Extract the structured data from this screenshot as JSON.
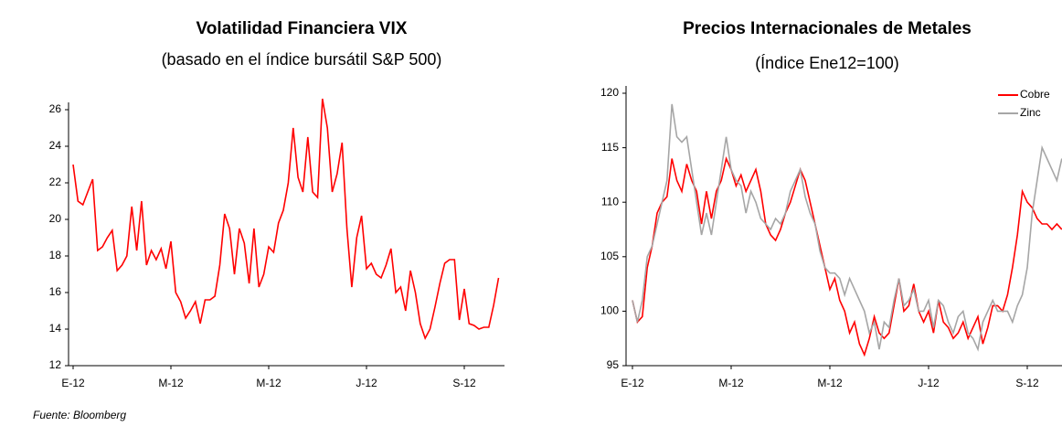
{
  "chart_data": [
    {
      "type": "line",
      "title": "Volatilidad Financiera VIX",
      "subtitle": "(basado en el índice bursátil S&P 500)",
      "source": "Fuente: Bloomberg",
      "categories": [
        "E-12",
        null,
        null,
        null,
        null,
        null,
        null,
        null,
        null,
        null,
        null,
        null,
        null,
        null,
        null,
        null,
        null,
        null,
        null,
        null,
        "M-12",
        null,
        null,
        null,
        null,
        null,
        null,
        null,
        null,
        null,
        null,
        null,
        null,
        null,
        null,
        null,
        null,
        null,
        null,
        null,
        "M-12",
        null,
        null,
        null,
        null,
        null,
        null,
        null,
        null,
        null,
        null,
        null,
        null,
        null,
        null,
        null,
        null,
        null,
        null,
        null,
        "J-12",
        null,
        null,
        null,
        null,
        null,
        null,
        null,
        null,
        null,
        null,
        null,
        null,
        null,
        null,
        null,
        null,
        null,
        null,
        null,
        "S-12",
        null,
        null,
        null,
        null,
        null,
        null,
        null
      ],
      "series": [
        {
          "name": "VIX",
          "color": "#ff0000",
          "values": [
            23,
            21,
            20.8,
            21.5,
            22.2,
            18.3,
            18.5,
            19,
            19.4,
            17.2,
            17.5,
            18,
            20.7,
            18.3,
            21,
            17.5,
            18.3,
            17.8,
            18.4,
            17.3,
            18.8,
            16,
            15.5,
            14.6,
            15,
            15.5,
            14.3,
            15.6,
            15.6,
            15.8,
            17.5,
            20.3,
            19.5,
            17,
            19.5,
            18.7,
            16.5,
            19.5,
            16.3,
            17,
            18.5,
            18.2,
            19.8,
            20.5,
            22,
            25,
            22.3,
            21.5,
            24.5,
            21.5,
            21.2,
            26.6,
            25,
            21.5,
            22.5,
            24.2,
            19.5,
            16.3,
            19,
            20.2,
            17.3,
            17.6,
            17,
            16.8,
            17.5,
            18.4,
            16,
            16.3,
            15,
            17.2,
            16,
            14.3,
            13.5,
            14,
            15.2,
            16.5,
            17.6,
            17.8,
            17.8,
            14.5,
            16.2,
            14.3,
            14.2,
            14,
            14.1,
            14.1,
            15.3,
            16.8
          ]
        }
      ],
      "ylim": [
        12,
        26
      ],
      "yticks": [
        12,
        14,
        16,
        18,
        20,
        22,
        24,
        26
      ],
      "legend": false
    },
    {
      "type": "line",
      "title": "Precios Internacionales de Metales",
      "subtitle": "(Índice Ene12=100)",
      "categories": [
        "E-12",
        null,
        null,
        null,
        null,
        null,
        null,
        null,
        null,
        null,
        null,
        null,
        null,
        null,
        null,
        null,
        null,
        null,
        null,
        null,
        "M-12",
        null,
        null,
        null,
        null,
        null,
        null,
        null,
        null,
        null,
        null,
        null,
        null,
        null,
        null,
        null,
        null,
        null,
        null,
        null,
        "M-12",
        null,
        null,
        null,
        null,
        null,
        null,
        null,
        null,
        null,
        null,
        null,
        null,
        null,
        null,
        null,
        null,
        null,
        null,
        null,
        "J-12",
        null,
        null,
        null,
        null,
        null,
        null,
        null,
        null,
        null,
        null,
        null,
        null,
        null,
        null,
        null,
        null,
        null,
        null,
        null,
        "S-12",
        null,
        null,
        null,
        null,
        null,
        null,
        null
      ],
      "series": [
        {
          "name": "Cobre",
          "color": "#ff0000",
          "values": [
            101,
            99,
            99.5,
            104,
            106,
            109,
            110,
            110.5,
            114,
            112,
            111,
            113.5,
            112,
            111,
            108,
            111,
            108.5,
            111,
            112,
            114,
            113,
            111.5,
            112.5,
            111,
            112,
            113,
            111,
            108,
            107,
            106.5,
            107.5,
            109,
            110,
            111.5,
            113,
            112,
            110,
            108,
            106,
            104,
            102,
            103,
            101,
            100,
            98,
            99,
            97,
            96,
            97.5,
            99.5,
            98,
            97.5,
            98,
            100.5,
            103,
            100,
            100.5,
            102.5,
            100,
            99,
            100,
            98,
            101,
            99,
            98.5,
            97.5,
            98,
            99,
            97.5,
            98.5,
            99.5,
            97,
            98.5,
            100.5,
            100.5,
            100,
            101.5,
            104,
            107,
            111,
            110,
            109.5,
            108.5,
            108,
            108,
            107.5,
            108,
            107.5
          ]
        },
        {
          "name": "Zinc",
          "color": "#a6a6a6",
          "values": [
            101,
            99,
            101,
            105,
            106,
            108,
            110,
            112,
            119,
            116,
            115.5,
            116,
            113,
            110,
            107,
            109,
            107,
            110,
            113,
            116,
            113,
            112,
            111.5,
            109,
            111,
            110,
            108.5,
            108,
            107.5,
            108.5,
            108,
            109,
            111,
            112,
            113,
            110.5,
            109,
            108,
            105.5,
            104,
            103.5,
            103.5,
            103,
            101.5,
            103,
            102,
            101,
            100,
            98,
            99,
            96.5,
            99,
            98.5,
            101,
            103,
            100.5,
            101,
            102,
            100,
            100,
            101,
            98.5,
            101,
            100.5,
            99,
            98,
            99.5,
            100,
            98,
            97.5,
            96.5,
            99,
            100,
            101,
            100,
            100,
            100,
            99,
            100.5,
            101.5,
            104,
            109,
            112,
            115,
            114,
            113,
            112,
            114
          ]
        }
      ],
      "ylim": [
        95,
        120
      ],
      "yticks": [
        95,
        100,
        105,
        110,
        115,
        120
      ],
      "legend": "top-right"
    }
  ]
}
